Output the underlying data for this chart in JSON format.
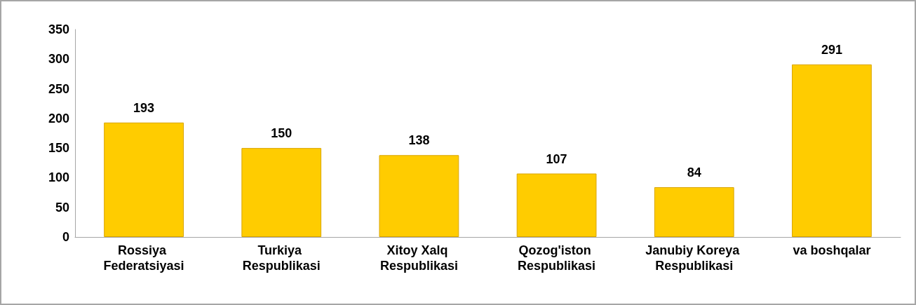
{
  "chart_data": {
    "type": "bar",
    "categories": [
      "Rossiya Federatsiyasi",
      "Turkiya Respublikasi",
      "Xitoy Xalq Respublikasi",
      "Qozog'iston Respublikasi",
      "Janubiy Koreya Respublikasi",
      "va boshqalar"
    ],
    "values": [
      193,
      150,
      138,
      107,
      84,
      291
    ],
    "color": "#ffcc00",
    "ylim": [
      0,
      350
    ],
    "yticks": [
      0,
      50,
      100,
      150,
      200,
      250,
      300,
      350
    ],
    "grid": false,
    "data_labels": true
  }
}
